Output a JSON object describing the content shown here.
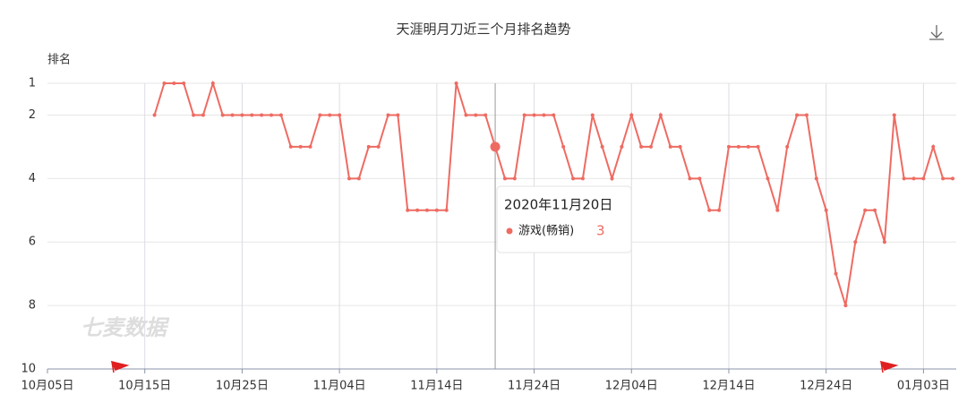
{
  "chart_data": {
    "type": "line",
    "title": "天涯明月刀近三个月排名趋势",
    "y_label": "排名",
    "watermark": "七麦数据",
    "categories": [
      "10月05日",
      null,
      null,
      null,
      null,
      null,
      null,
      null,
      null,
      null,
      "10月15日",
      null,
      null,
      null,
      null,
      null,
      null,
      null,
      null,
      null,
      "10月25日",
      null,
      null,
      null,
      null,
      null,
      null,
      null,
      null,
      null,
      "11月04日",
      null,
      null,
      null,
      null,
      null,
      null,
      null,
      null,
      null,
      "11月14日",
      null,
      null,
      null,
      null,
      null,
      null,
      null,
      null,
      null,
      "11月24日",
      null,
      null,
      null,
      null,
      null,
      null,
      null,
      null,
      null,
      "12月04日",
      null,
      null,
      null,
      null,
      null,
      null,
      null,
      null,
      null,
      "12月14日",
      null,
      null,
      null,
      null,
      null,
      null,
      null,
      null,
      null,
      "12月24日",
      null,
      null,
      null,
      null,
      null,
      null,
      null,
      null,
      null,
      "01月03日",
      null,
      null,
      null
    ],
    "series": [
      {
        "name": "游戏(畅销)",
        "color": "#ee6b62",
        "values": [
          null,
          null,
          null,
          null,
          null,
          null,
          null,
          null,
          null,
          null,
          null,
          2,
          1,
          1,
          1,
          2,
          2,
          1,
          2,
          2,
          2,
          2,
          2,
          2,
          2,
          3,
          3,
          3,
          2,
          2,
          2,
          4,
          4,
          3,
          3,
          2,
          2,
          5,
          5,
          5,
          5,
          5,
          1,
          2,
          2,
          2,
          3,
          4,
          4,
          2,
          2,
          2,
          2,
          3,
          4,
          4,
          2,
          3,
          4,
          3,
          2,
          3,
          3,
          2,
          3,
          3,
          4,
          4,
          5,
          5,
          3,
          3,
          3,
          3,
          4,
          5,
          3,
          2,
          2,
          4,
          5,
          7,
          8,
          6,
          5,
          5,
          6,
          2,
          4,
          4,
          4,
          3,
          4,
          4
        ]
      }
    ],
    "tooltip_title": "2020年11月20日",
    "ylim": [
      1,
      10
    ],
    "yticks": [
      1,
      2,
      4,
      6,
      8,
      10
    ],
    "y_inverted": true,
    "grid": true
  }
}
